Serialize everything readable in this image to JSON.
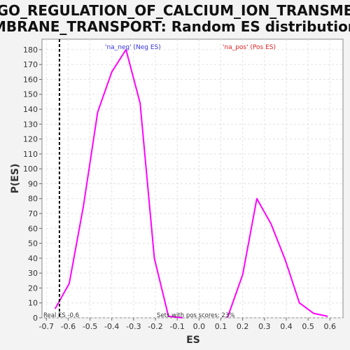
{
  "chart_data": {
    "type": "line",
    "title_lines": [
      "GO_REGULATION_OF_CALCIUM_ION_TRANSME",
      "MBRANE_TRANSPORT: Random ES distribution"
    ],
    "xlabel": "ES",
    "ylabel": "P(ES)",
    "xlim": [
      -0.72,
      0.66
    ],
    "ylim": [
      0,
      187
    ],
    "xticks": [
      -0.7,
      -0.6,
      -0.5,
      -0.4,
      -0.3,
      -0.2,
      -0.1,
      0.0,
      0.1,
      0.2,
      0.3,
      0.4,
      0.5,
      0.6
    ],
    "xtick_labels": [
      "-0.7",
      "-0.6",
      "-0.5",
      "-0.4",
      "-0.3",
      "-0.2",
      "-0.1",
      "0.0",
      "0.1",
      "0.2",
      "0.3",
      "0.4",
      "0.5",
      "0.6"
    ],
    "yticks": [
      0,
      10,
      20,
      30,
      40,
      50,
      60,
      70,
      80,
      90,
      100,
      110,
      120,
      130,
      140,
      150,
      160,
      170,
      180
    ],
    "grid": true,
    "series": [
      {
        "name": "na_neg",
        "color": "#ff00ff",
        "x": [
          -0.66,
          -0.595,
          -0.53,
          -0.465,
          -0.4,
          -0.335,
          -0.27,
          -0.205,
          -0.14,
          -0.075
        ],
        "y": [
          6,
          23,
          75,
          138,
          165,
          180,
          144,
          40,
          1,
          0
        ]
      },
      {
        "name": "na_pos",
        "color": "#ff00ff",
        "x": [
          0.13,
          0.2,
          0.265,
          0.33,
          0.395,
          0.46,
          0.525,
          0.59
        ],
        "y": [
          0,
          29,
          80,
          63,
          39,
          10,
          3,
          1
        ]
      }
    ],
    "legend": [
      {
        "text": "'na_neg' (Neg ES)",
        "color": "#3333dd"
      },
      {
        "text": "'na_pos' (Pos ES)",
        "color": "#dd2222"
      }
    ],
    "real_es": -0.64,
    "annotations": {
      "real_es_label": "Real ES -0.6",
      "sets_label": "Sets with pos scores: 23%"
    }
  }
}
